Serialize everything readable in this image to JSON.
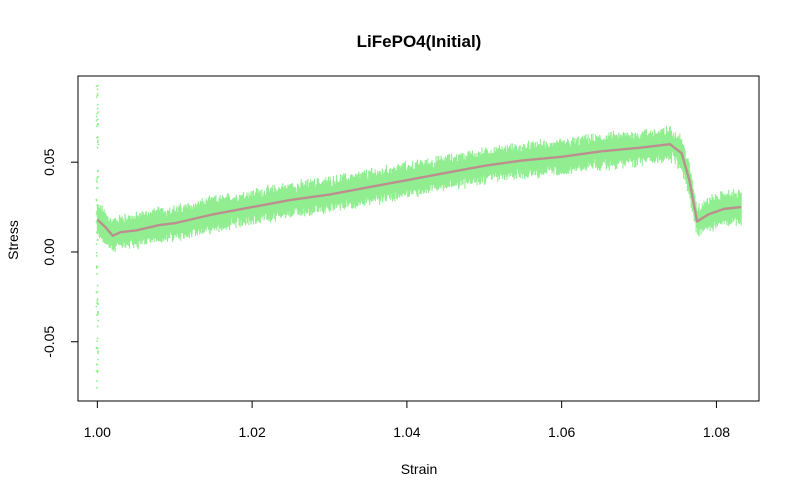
{
  "chart_data": {
    "type": "scatter",
    "title": "LiFePO4(Initial)",
    "xlabel": "Strain",
    "ylabel": "Stress",
    "xlim": [
      0.9975,
      1.0855
    ],
    "ylim": [
      -0.083,
      0.098
    ],
    "x_ticks": [
      1.0,
      1.02,
      1.04,
      1.06,
      1.08
    ],
    "x_tick_labels": [
      "1.00",
      "1.02",
      "1.04",
      "1.06",
      "1.08"
    ],
    "y_ticks": [
      -0.05,
      0.0,
      0.05
    ],
    "y_tick_labels": [
      "-0.05",
      "0.00",
      "0.05"
    ],
    "grid": false,
    "legend": "none",
    "colors": {
      "raw": "#90EE90",
      "smooth": "#BC8F8F",
      "frame": "#000000"
    },
    "series": [
      {
        "role": "raw",
        "x_range": [
          1.0,
          1.0832
        ],
        "initial_spike": {
          "x": 1.0,
          "y_min": -0.076,
          "y_max": 0.093
        },
        "band_halfwidth_approx": 0.008
      },
      {
        "role": "smoothed",
        "points": [
          [
            1.0,
            0.018
          ],
          [
            1.001,
            0.014
          ],
          [
            1.002,
            0.009
          ],
          [
            1.003,
            0.011
          ],
          [
            1.005,
            0.012
          ],
          [
            1.008,
            0.015
          ],
          [
            1.01,
            0.016
          ],
          [
            1.015,
            0.021
          ],
          [
            1.02,
            0.025
          ],
          [
            1.025,
            0.029
          ],
          [
            1.03,
            0.032
          ],
          [
            1.035,
            0.036
          ],
          [
            1.04,
            0.04
          ],
          [
            1.045,
            0.044
          ],
          [
            1.05,
            0.048
          ],
          [
            1.055,
            0.051
          ],
          [
            1.06,
            0.053
          ],
          [
            1.065,
            0.056
          ],
          [
            1.07,
            0.058
          ],
          [
            1.074,
            0.06
          ],
          [
            1.0755,
            0.055
          ],
          [
            1.0765,
            0.04
          ],
          [
            1.0775,
            0.017
          ],
          [
            1.079,
            0.021
          ],
          [
            1.081,
            0.024
          ],
          [
            1.0832,
            0.025
          ]
        ]
      }
    ]
  }
}
